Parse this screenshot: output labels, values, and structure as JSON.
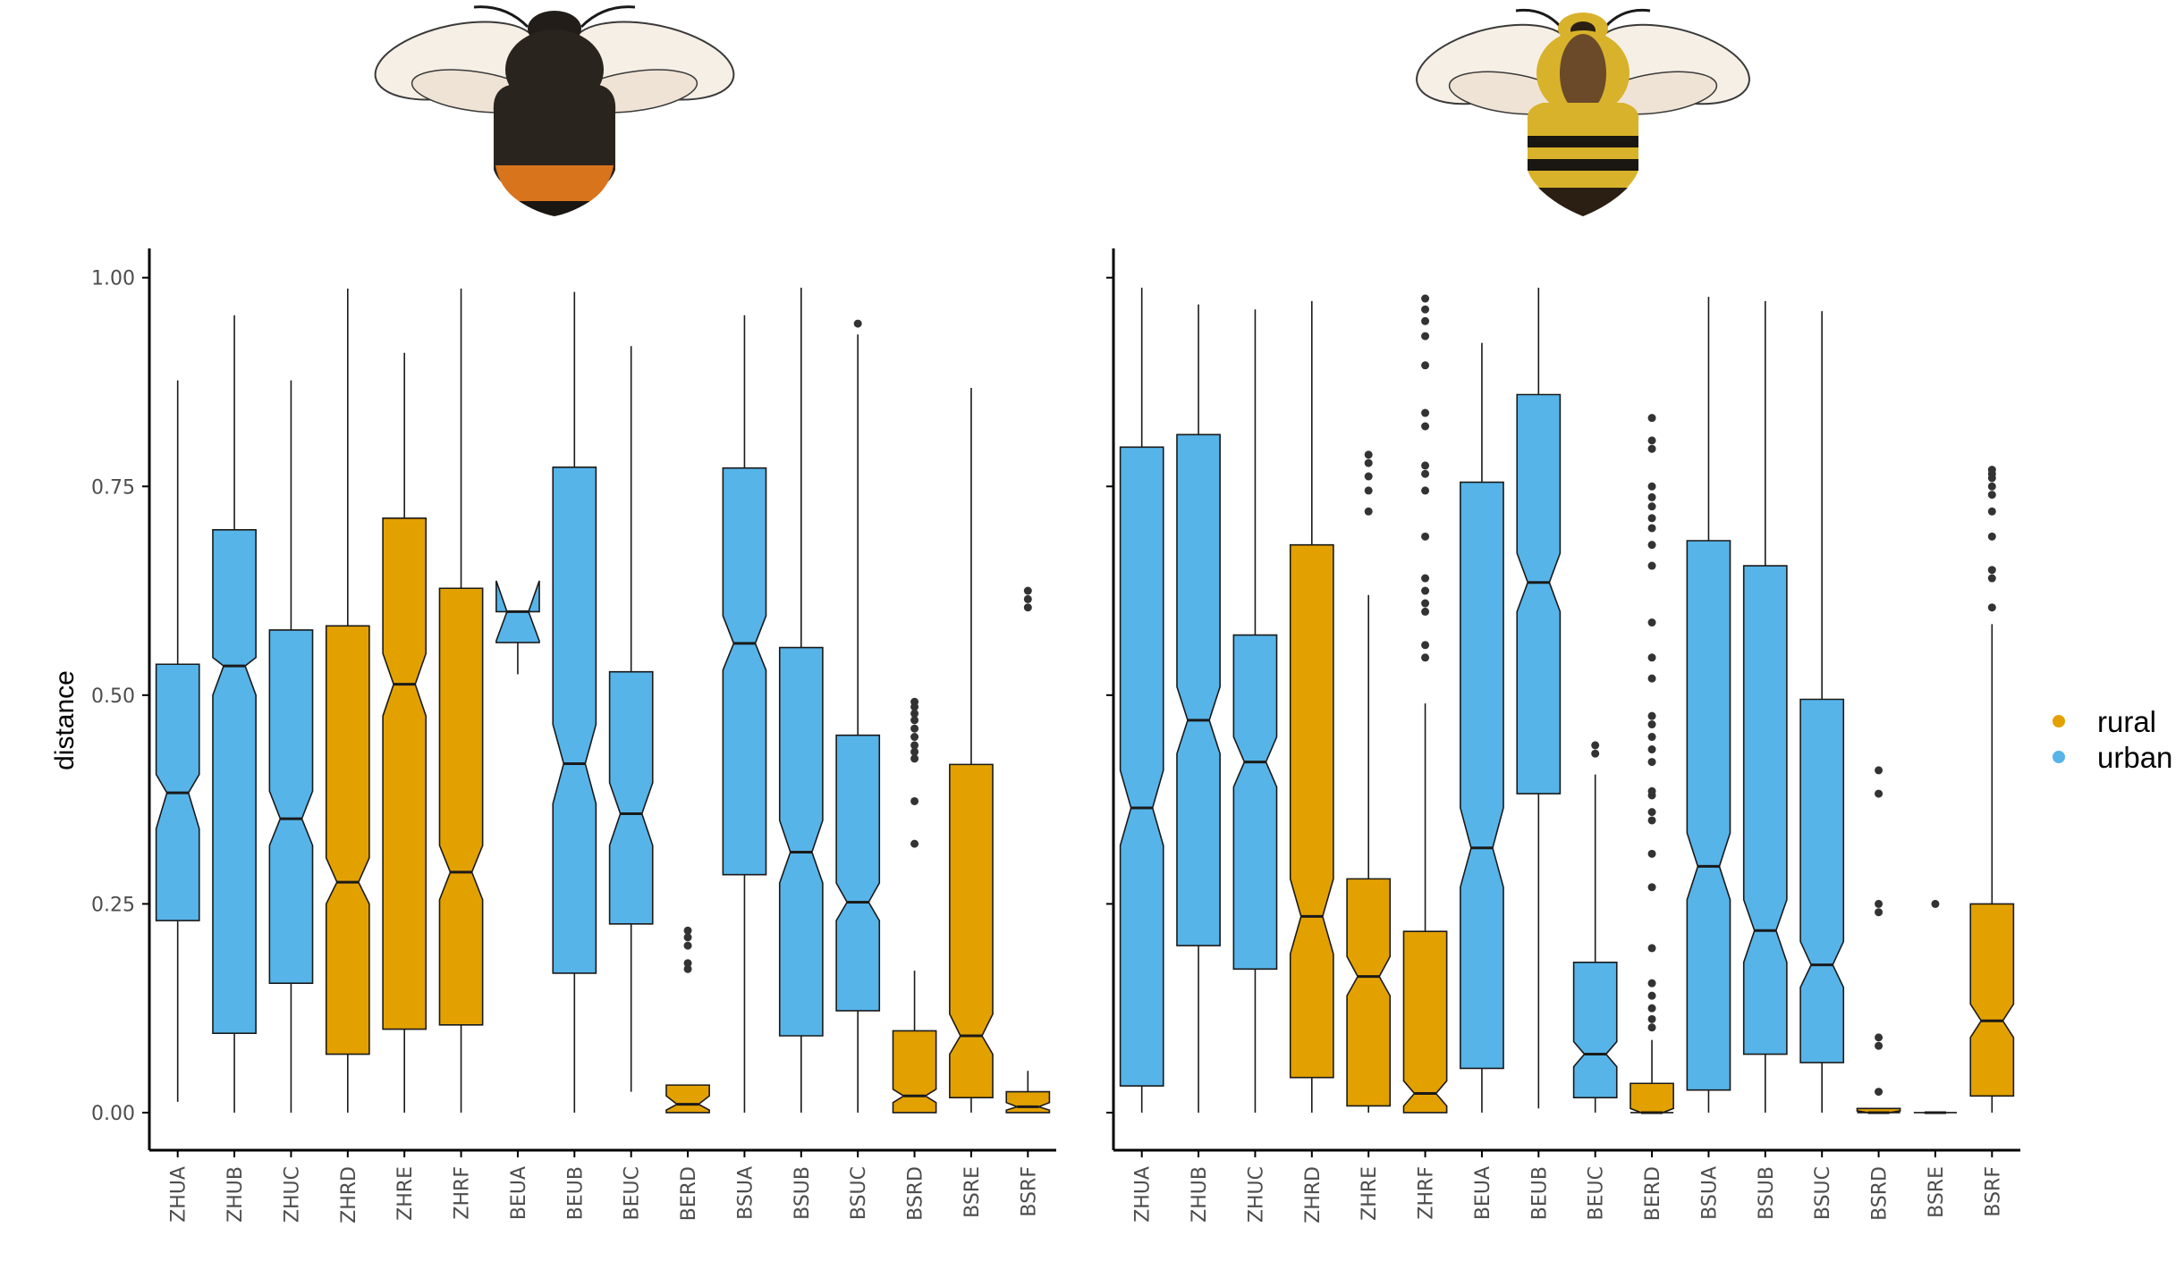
{
  "figure": {
    "colors": {
      "rural": "#E3A100",
      "urban": "#56B4E9",
      "outline": "#1a1a1a",
      "axis": "#000000"
    }
  },
  "legend": {
    "items": [
      {
        "key": "rural",
        "label": "rural",
        "color": "#E3A100"
      },
      {
        "key": "urban",
        "label": "urban",
        "color": "#56B4E9"
      }
    ]
  },
  "illustrations": {
    "left": {
      "icon": "dark-bumblebee-red-tail-icon"
    },
    "right": {
      "icon": "yellow-banded-bumblebee-icon"
    }
  },
  "chart_data": [
    {
      "type": "box",
      "panel": "left",
      "ylabel": "distance",
      "ylim": [
        -0.045,
        1.035
      ],
      "yticks": [
        {
          "value": 0,
          "label": "0.00"
        },
        {
          "value": 0.25,
          "label": "0.25"
        },
        {
          "value": 0.5,
          "label": "0.50"
        },
        {
          "value": 0.75,
          "label": "0.75"
        },
        {
          "value": 1.0,
          "label": "1.00"
        }
      ],
      "notched": true,
      "boxes": [
        {
          "label": "ZHUA",
          "group": "urban",
          "lower_whisker": 0.013,
          "q1": 0.23,
          "median": 0.383,
          "q3": 0.537,
          "upper_whisker": 0.877,
          "notch_low": 0.34,
          "notch_high": 0.405,
          "outliers": []
        },
        {
          "label": "ZHUB",
          "group": "urban",
          "lower_whisker": 0.0,
          "q1": 0.095,
          "median": 0.535,
          "q3": 0.698,
          "upper_whisker": 0.955,
          "notch_low": 0.5,
          "notch_high": 0.545,
          "outliers": []
        },
        {
          "label": "ZHUC",
          "group": "urban",
          "lower_whisker": 0.0,
          "q1": 0.155,
          "median": 0.352,
          "q3": 0.578,
          "upper_whisker": 0.877,
          "notch_low": 0.32,
          "notch_high": 0.385,
          "outliers": []
        },
        {
          "label": "ZHRD",
          "group": "rural",
          "lower_whisker": 0.0,
          "q1": 0.07,
          "median": 0.276,
          "q3": 0.583,
          "upper_whisker": 0.987,
          "notch_low": 0.25,
          "notch_high": 0.305,
          "outliers": []
        },
        {
          "label": "ZHRE",
          "group": "rural",
          "lower_whisker": 0.0,
          "q1": 0.1,
          "median": 0.513,
          "q3": 0.712,
          "upper_whisker": 0.91,
          "notch_low": 0.475,
          "notch_high": 0.55,
          "outliers": []
        },
        {
          "label": "ZHRF",
          "group": "rural",
          "lower_whisker": 0.0,
          "q1": 0.105,
          "median": 0.288,
          "q3": 0.628,
          "upper_whisker": 0.987,
          "notch_low": 0.255,
          "notch_high": 0.32,
          "outliers": []
        },
        {
          "label": "BEUA",
          "group": "urban",
          "lower_whisker": 0.525,
          "q1": 0.563,
          "median": 0.6,
          "q3": 0.6,
          "upper_whisker": 0.6,
          "notch_low": 0.565,
          "notch_high": 0.637,
          "outliers": []
        },
        {
          "label": "BEUB",
          "group": "urban",
          "lower_whisker": 0.0,
          "q1": 0.167,
          "median": 0.418,
          "q3": 0.773,
          "upper_whisker": 0.983,
          "notch_low": 0.37,
          "notch_high": 0.465,
          "outliers": []
        },
        {
          "label": "BEUC",
          "group": "urban",
          "lower_whisker": 0.025,
          "q1": 0.226,
          "median": 0.358,
          "q3": 0.528,
          "upper_whisker": 0.918,
          "notch_low": 0.32,
          "notch_high": 0.395,
          "outliers": []
        },
        {
          "label": "BERD",
          "group": "rural",
          "lower_whisker": 0.0,
          "q1": 0.0,
          "median": 0.01,
          "q3": 0.033,
          "upper_whisker": 0.033,
          "notch_low": 0.003,
          "notch_high": 0.02,
          "outliers": [
            0.172,
            0.179,
            0.2,
            0.21,
            0.218
          ]
        },
        {
          "label": "BSUA",
          "group": "urban",
          "lower_whisker": 0.0,
          "q1": 0.285,
          "median": 0.562,
          "q3": 0.772,
          "upper_whisker": 0.955,
          "notch_low": 0.53,
          "notch_high": 0.595,
          "outliers": []
        },
        {
          "label": "BSUB",
          "group": "urban",
          "lower_whisker": 0.0,
          "q1": 0.092,
          "median": 0.312,
          "q3": 0.557,
          "upper_whisker": 0.988,
          "notch_low": 0.275,
          "notch_high": 0.35,
          "outliers": []
        },
        {
          "label": "BSUC",
          "group": "urban",
          "lower_whisker": 0.0,
          "q1": 0.122,
          "median": 0.252,
          "q3": 0.452,
          "upper_whisker": 0.932,
          "notch_low": 0.23,
          "notch_high": 0.275,
          "outliers": [
            0.945
          ]
        },
        {
          "label": "BSRD",
          "group": "rural",
          "lower_whisker": 0.0,
          "q1": 0.0,
          "median": 0.02,
          "q3": 0.098,
          "upper_whisker": 0.17,
          "notch_low": 0.012,
          "notch_high": 0.028,
          "outliers": [
            0.322,
            0.373,
            0.424,
            0.432,
            0.44,
            0.45,
            0.46,
            0.47,
            0.478,
            0.486,
            0.492
          ]
        },
        {
          "label": "BSRE",
          "group": "rural",
          "lower_whisker": 0.0,
          "q1": 0.018,
          "median": 0.092,
          "q3": 0.417,
          "upper_whisker": 0.868,
          "notch_low": 0.07,
          "notch_high": 0.118,
          "outliers": []
        },
        {
          "label": "BSRF",
          "group": "rural",
          "lower_whisker": 0.0,
          "q1": 0.0,
          "median": 0.007,
          "q3": 0.025,
          "upper_whisker": 0.05,
          "notch_low": 0.003,
          "notch_high": 0.012,
          "outliers": [
            0.605,
            0.615,
            0.625
          ]
        }
      ]
    },
    {
      "type": "box",
      "panel": "right",
      "ylabel": "",
      "ylim": [
        -0.045,
        1.035
      ],
      "yticks": [
        {
          "value": 0,
          "label": ""
        },
        {
          "value": 0.25,
          "label": ""
        },
        {
          "value": 0.5,
          "label": ""
        },
        {
          "value": 0.75,
          "label": ""
        },
        {
          "value": 1.0,
          "label": ""
        }
      ],
      "notched": true,
      "boxes": [
        {
          "label": "ZHUA",
          "group": "urban",
          "lower_whisker": 0.0,
          "q1": 0.032,
          "median": 0.365,
          "q3": 0.797,
          "upper_whisker": 0.988,
          "notch_low": 0.32,
          "notch_high": 0.41,
          "outliers": []
        },
        {
          "label": "ZHUB",
          "group": "urban",
          "lower_whisker": 0.0,
          "q1": 0.2,
          "median": 0.47,
          "q3": 0.812,
          "upper_whisker": 0.968,
          "notch_low": 0.43,
          "notch_high": 0.51,
          "outliers": []
        },
        {
          "label": "ZHUC",
          "group": "urban",
          "lower_whisker": 0.0,
          "q1": 0.172,
          "median": 0.42,
          "q3": 0.572,
          "upper_whisker": 0.962,
          "notch_low": 0.39,
          "notch_high": 0.45,
          "outliers": []
        },
        {
          "label": "ZHRD",
          "group": "rural",
          "lower_whisker": 0.0,
          "q1": 0.042,
          "median": 0.235,
          "q3": 0.68,
          "upper_whisker": 0.972,
          "notch_low": 0.19,
          "notch_high": 0.28,
          "outliers": []
        },
        {
          "label": "ZHRE",
          "group": "rural",
          "lower_whisker": 0.0,
          "q1": 0.008,
          "median": 0.163,
          "q3": 0.28,
          "upper_whisker": 0.62,
          "notch_low": 0.14,
          "notch_high": 0.187,
          "outliers": [
            0.72,
            0.745,
            0.762,
            0.778,
            0.788
          ]
        },
        {
          "label": "ZHRF",
          "group": "rural",
          "lower_whisker": 0.0,
          "q1": 0.0,
          "median": 0.023,
          "q3": 0.217,
          "upper_whisker": 0.49,
          "notch_low": 0.008,
          "notch_high": 0.038,
          "outliers": [
            0.545,
            0.56,
            0.6,
            0.61,
            0.625,
            0.64,
            0.69,
            0.745,
            0.765,
            0.775,
            0.822,
            0.838,
            0.895,
            0.93,
            0.948,
            0.962,
            0.975
          ]
        },
        {
          "label": "BEUA",
          "group": "urban",
          "lower_whisker": 0.0,
          "q1": 0.053,
          "median": 0.317,
          "q3": 0.755,
          "upper_whisker": 0.922,
          "notch_low": 0.27,
          "notch_high": 0.365,
          "outliers": []
        },
        {
          "label": "BEUB",
          "group": "urban",
          "lower_whisker": 0.005,
          "q1": 0.382,
          "median": 0.635,
          "q3": 0.86,
          "upper_whisker": 0.988,
          "notch_low": 0.6,
          "notch_high": 0.67,
          "outliers": []
        },
        {
          "label": "BEUC",
          "group": "urban",
          "lower_whisker": 0.0,
          "q1": 0.018,
          "median": 0.07,
          "q3": 0.18,
          "upper_whisker": 0.405,
          "notch_low": 0.055,
          "notch_high": 0.085,
          "outliers": [
            0.43,
            0.44
          ]
        },
        {
          "label": "BERD",
          "group": "rural",
          "lower_whisker": 0.0,
          "q1": 0.0,
          "median": 0.0,
          "q3": 0.035,
          "upper_whisker": 0.087,
          "notch_low": 0.0,
          "notch_high": 0.005,
          "outliers": [
            0.102,
            0.112,
            0.125,
            0.14,
            0.155,
            0.197,
            0.27,
            0.31,
            0.35,
            0.36,
            0.38,
            0.385,
            0.42,
            0.435,
            0.45,
            0.465,
            0.475,
            0.52,
            0.545,
            0.587,
            0.655,
            0.68,
            0.7,
            0.712,
            0.726,
            0.737,
            0.75,
            0.795,
            0.805,
            0.832
          ]
        },
        {
          "label": "BSUA",
          "group": "urban",
          "lower_whisker": 0.0,
          "q1": 0.027,
          "median": 0.295,
          "q3": 0.685,
          "upper_whisker": 0.977,
          "notch_low": 0.255,
          "notch_high": 0.335,
          "outliers": []
        },
        {
          "label": "BSUB",
          "group": "urban",
          "lower_whisker": 0.0,
          "q1": 0.07,
          "median": 0.218,
          "q3": 0.655,
          "upper_whisker": 0.972,
          "notch_low": 0.18,
          "notch_high": 0.255,
          "outliers": []
        },
        {
          "label": "BSUC",
          "group": "urban",
          "lower_whisker": 0.0,
          "q1": 0.06,
          "median": 0.177,
          "q3": 0.495,
          "upper_whisker": 0.96,
          "notch_low": 0.15,
          "notch_high": 0.205,
          "outliers": []
        },
        {
          "label": "BSRD",
          "group": "rural",
          "lower_whisker": 0.0,
          "q1": 0.0,
          "median": 0.0,
          "q3": 0.005,
          "upper_whisker": 0.005,
          "notch_low": 0.0,
          "notch_high": 0.002,
          "outliers": [
            0.025,
            0.08,
            0.09,
            0.24,
            0.25,
            0.382,
            0.41
          ]
        },
        {
          "label": "BSRE",
          "group": "rural",
          "lower_whisker": 0.0,
          "q1": 0.0,
          "median": 0.0,
          "q3": 0.0,
          "upper_whisker": 0.0,
          "notch_low": 0.0,
          "notch_high": 0.0,
          "outliers": [
            0.25
          ]
        },
        {
          "label": "BSRF",
          "group": "rural",
          "lower_whisker": 0.0,
          "q1": 0.02,
          "median": 0.11,
          "q3": 0.25,
          "upper_whisker": 0.585,
          "notch_low": 0.09,
          "notch_high": 0.13,
          "outliers": [
            0.605,
            0.64,
            0.65,
            0.69,
            0.72,
            0.74,
            0.75,
            0.76,
            0.765,
            0.77
          ]
        }
      ]
    }
  ]
}
